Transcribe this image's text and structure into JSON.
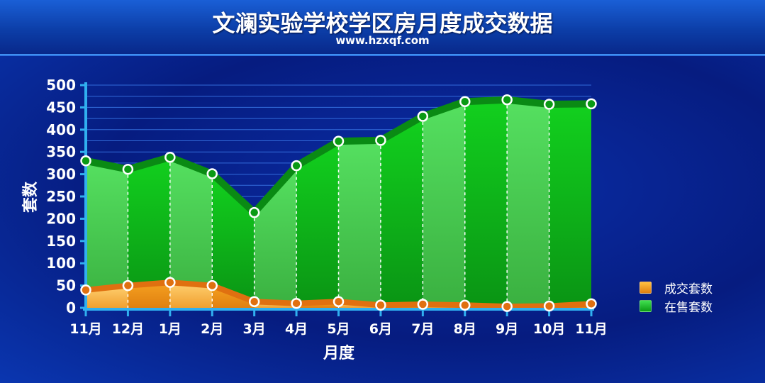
{
  "header": {
    "title": "文澜实验学校学区房月度成交数据",
    "subtitle": "www.hzxqf.com"
  },
  "chart_data": {
    "type": "area",
    "title": "文澜实验学校学区房月度成交数据",
    "subtitle": "www.hzxqf.com",
    "xlabel": "月度",
    "ylabel": "套数",
    "categories": [
      "11月",
      "12月",
      "1月",
      "2月",
      "3月",
      "4月",
      "5月",
      "6月",
      "7月",
      "8月",
      "9月",
      "10月",
      "11月"
    ],
    "ylim": [
      0,
      500
    ],
    "yticks": [
      0,
      50,
      100,
      150,
      200,
      250,
      300,
      350,
      400,
      450,
      500
    ],
    "grid": true,
    "legend_position": "right",
    "series": [
      {
        "name": "成交套数",
        "color": "#f0a020",
        "line_color": "#e07010",
        "values": [
          40,
          50,
          57,
          50,
          14,
          10,
          14,
          6,
          8,
          6,
          3,
          4,
          9
        ]
      },
      {
        "name": "在售套数",
        "color": "#10c020",
        "line_color": "#0a8a14",
        "values": [
          330,
          311,
          338,
          301,
          214,
          319,
          374,
          376,
          430,
          463,
          467,
          457,
          458
        ]
      }
    ]
  }
}
